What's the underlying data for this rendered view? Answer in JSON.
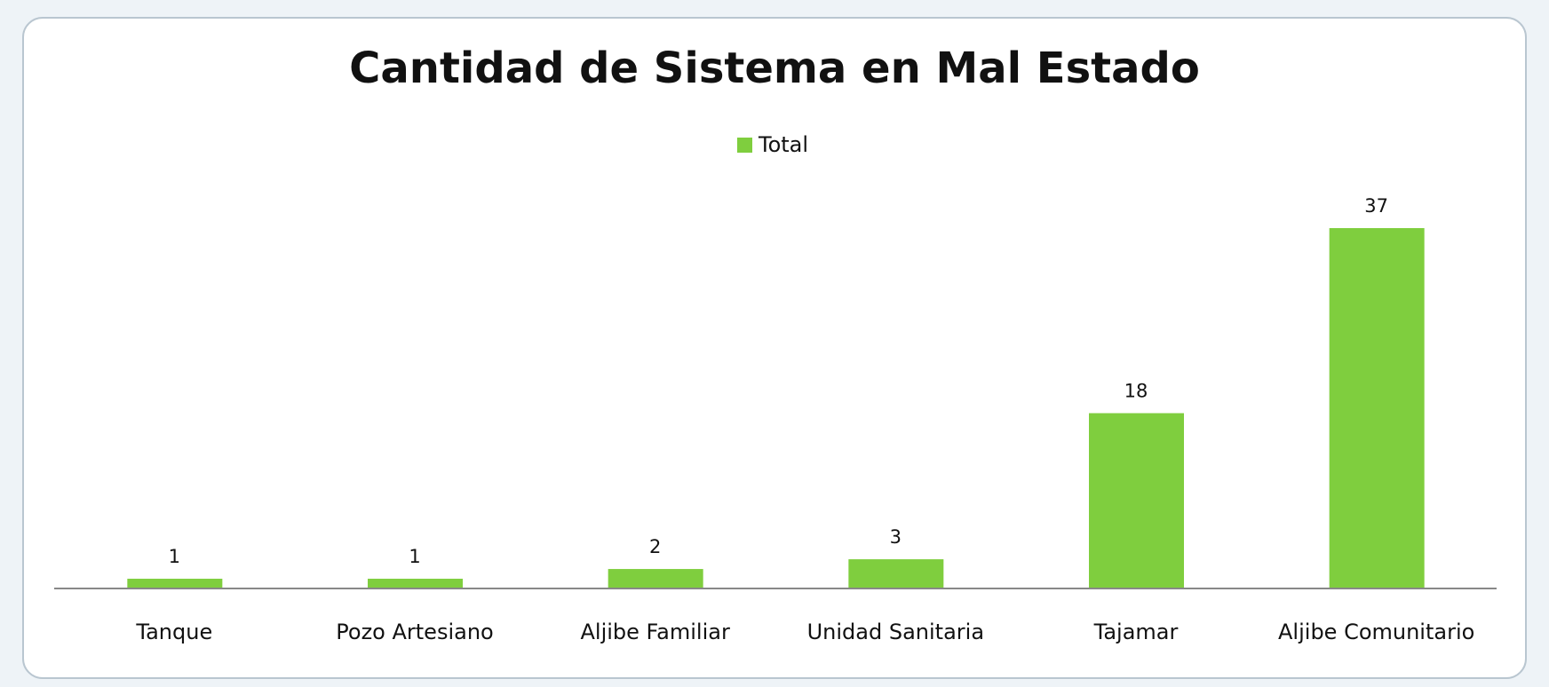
{
  "chart_data": {
    "type": "bar",
    "title": "Cantidad de Sistema en Mal Estado",
    "categories": [
      "Tanque",
      "Pozo Artesiano",
      "Aljibe Familiar",
      "Unidad Sanitaria",
      "Tajamar",
      "Aljibe Comunitario"
    ],
    "series": [
      {
        "name": "Total",
        "color": "#7fce3e",
        "values": [
          1,
          1,
          2,
          3,
          18,
          37
        ]
      }
    ],
    "legend": "top"
  }
}
